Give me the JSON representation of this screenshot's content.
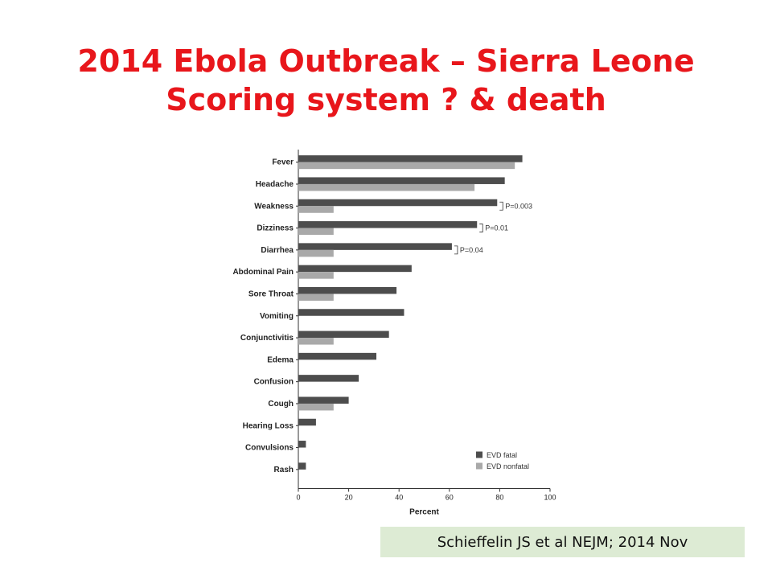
{
  "title": {
    "line1": "2014 Ebola Outbreak – Sierra Leone",
    "line2": "Scoring system ? & death"
  },
  "citation": "Schieffelin JS et al  NEJM; 2014 Nov",
  "colors": {
    "title": "#e8161b",
    "fatal": "#4d4d4d",
    "nonfatal": "#a9a9a9",
    "citation_bg": "#ddebd4"
  },
  "chart_data": {
    "type": "bar",
    "orientation": "horizontal",
    "categories": [
      "Fever",
      "Headache",
      "Weakness",
      "Dizziness",
      "Diarrhea",
      "Abdominal Pain",
      "Sore Throat",
      "Vomiting",
      "Conjunctivitis",
      "Edema",
      "Confusion",
      "Cough",
      "Hearing Loss",
      "Convulsions",
      "Rash"
    ],
    "series": [
      {
        "name": "EVD fatal",
        "values": [
          89,
          82,
          79,
          71,
          61,
          45,
          39,
          42,
          36,
          31,
          24,
          20,
          7,
          3,
          3
        ]
      },
      {
        "name": "EVD nonfatal",
        "values": [
          86,
          70,
          14,
          14,
          14,
          14,
          14,
          0,
          14,
          0,
          0,
          14,
          0,
          0,
          0
        ]
      }
    ],
    "annotations": [
      {
        "category": "Weakness",
        "text": "P=0.003"
      },
      {
        "category": "Dizziness",
        "text": "P=0.01"
      },
      {
        "category": "Diarrhea",
        "text": "P=0.04"
      }
    ],
    "xlabel": "Percent",
    "ylabel": "",
    "xlim": [
      0,
      100
    ],
    "xticks": [
      "0",
      "20",
      "40",
      "60",
      "80",
      "100"
    ],
    "grid": false,
    "legend_position": "bottom-right"
  }
}
